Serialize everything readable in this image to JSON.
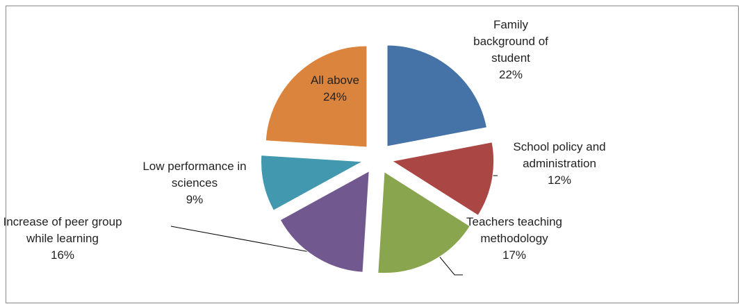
{
  "chart_data": {
    "type": "pie",
    "categories": [
      "Family background of student",
      "School policy and administration",
      "Teachers teaching methodology",
      "Increase of peer group while learning",
      "Low performance in sciences",
      "All above"
    ],
    "values": [
      22,
      12,
      17,
      16,
      9,
      24
    ],
    "value_labels": [
      "22%",
      "12%",
      "17%",
      "16%",
      "9%",
      "24%"
    ],
    "colors": [
      "#4572a7",
      "#aa4643",
      "#89a54e",
      "#71588f",
      "#4198af",
      "#db843d"
    ]
  }
}
